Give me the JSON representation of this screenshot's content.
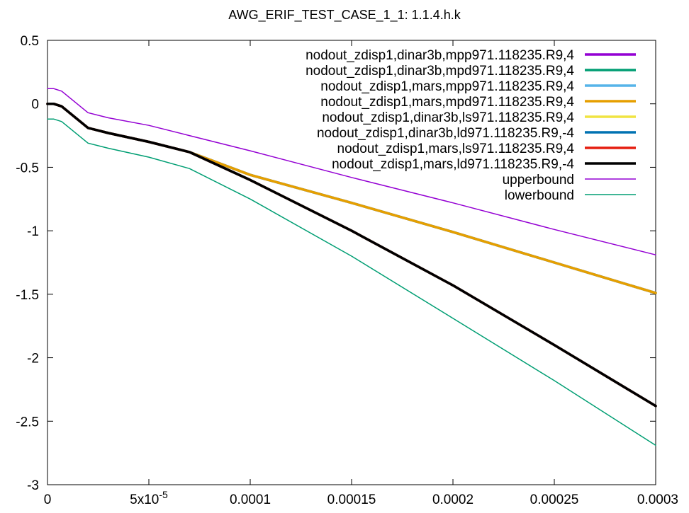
{
  "chart_data": {
    "type": "line",
    "title": "AWG_ERIF_TEST_CASE_1_1: 1.1.4.h.k",
    "xlabel": "",
    "ylabel": "",
    "xlim": [
      0,
      0.0003
    ],
    "ylim": [
      -3,
      0.5
    ],
    "x_ticks": [
      {
        "value": 0,
        "label": "0"
      },
      {
        "value": 5e-05,
        "label": "5x10",
        "exp": "-5"
      },
      {
        "value": 0.0001,
        "label": "0.0001"
      },
      {
        "value": 0.00015,
        "label": "0.00015"
      },
      {
        "value": 0.0002,
        "label": "0.0002"
      },
      {
        "value": 0.00025,
        "label": "0.00025"
      },
      {
        "value": 0.0003,
        "label": "0.0003"
      }
    ],
    "y_ticks": [
      {
        "value": 0.5,
        "label": "0.5"
      },
      {
        "value": 0,
        "label": "0"
      },
      {
        "value": -0.5,
        "label": "-0.5"
      },
      {
        "value": -1,
        "label": "-1"
      },
      {
        "value": -1.5,
        "label": "-1.5"
      },
      {
        "value": -2,
        "label": "-2"
      },
      {
        "value": -2.5,
        "label": "-2.5"
      },
      {
        "value": -3,
        "label": "-3"
      }
    ],
    "grid": false,
    "legend_position": "top-right",
    "series": [
      {
        "name": "nodout_zdisp1,dinar3b,mpp971.118235.R9,4",
        "color": "#9400d3",
        "width": 3.5,
        "x": [
          0,
          3e-06,
          7e-06,
          2e-05,
          3e-05,
          5e-05,
          7e-05,
          0.0001,
          0.00015,
          0.0002,
          0.00025,
          0.0003
        ],
        "y": [
          0,
          0,
          -0.02,
          -0.19,
          -0.23,
          -0.3,
          -0.38,
          -0.56,
          -0.78,
          -1.01,
          -1.25,
          -1.49
        ]
      },
      {
        "name": "nodout_zdisp1,dinar3b,mpd971.118235.R9,4",
        "color": "#009e73",
        "width": 3.5,
        "x": [
          0,
          3e-06,
          7e-06,
          2e-05,
          3e-05,
          5e-05,
          7e-05,
          0.0001,
          0.00015,
          0.0002,
          0.00025,
          0.0003
        ],
        "y": [
          0,
          0,
          -0.02,
          -0.19,
          -0.23,
          -0.3,
          -0.38,
          -0.56,
          -0.78,
          -1.01,
          -1.25,
          -1.49
        ]
      },
      {
        "name": "nodout_zdisp1,mars,mpp971.118235.R9,4",
        "color": "#56b4e9",
        "width": 3.5,
        "x": [
          0,
          3e-06,
          7e-06,
          2e-05,
          3e-05,
          5e-05,
          7e-05,
          0.0001,
          0.00015,
          0.0002,
          0.00025,
          0.0003
        ],
        "y": [
          0,
          0,
          -0.02,
          -0.19,
          -0.23,
          -0.3,
          -0.38,
          -0.56,
          -0.78,
          -1.01,
          -1.25,
          -1.49
        ]
      },
      {
        "name": "nodout_zdisp1,mars,mpd971.118235.R9,4",
        "color": "#e69f00",
        "width": 3.5,
        "x": [
          0,
          3e-06,
          7e-06,
          2e-05,
          3e-05,
          5e-05,
          7e-05,
          0.0001,
          0.00015,
          0.0002,
          0.00025,
          0.0003
        ],
        "y": [
          0,
          0,
          -0.02,
          -0.19,
          -0.23,
          -0.3,
          -0.38,
          -0.56,
          -0.78,
          -1.01,
          -1.25,
          -1.49
        ]
      },
      {
        "name": "nodout_zdisp1,dinar3b,ls971.118235.R9,4",
        "color": "#f0e442",
        "width": 3.5,
        "x": [
          0,
          3e-06,
          7e-06,
          2e-05,
          3e-05,
          5e-05,
          7e-05,
          0.0001,
          0.00015,
          0.0002,
          0.00025,
          0.0003
        ],
        "y": [
          0,
          0,
          -0.02,
          -0.19,
          -0.23,
          -0.3,
          -0.38,
          -0.6,
          -1.0,
          -1.43,
          -1.9,
          -2.38
        ]
      },
      {
        "name": "nodout_zdisp1,dinar3b,ld971.118235.R9,-4",
        "color": "#0072b2",
        "width": 3.5,
        "x": [
          0,
          3e-06,
          7e-06,
          2e-05,
          3e-05,
          5e-05,
          7e-05,
          0.0001,
          0.00015,
          0.0002,
          0.00025,
          0.0003
        ],
        "y": [
          0,
          0,
          -0.02,
          -0.19,
          -0.23,
          -0.3,
          -0.38,
          -0.6,
          -1.0,
          -1.43,
          -1.9,
          -2.38
        ]
      },
      {
        "name": "nodout_zdisp1,mars,ls971.118235.R9,4",
        "color": "#e51e10",
        "width": 3.5,
        "x": [
          0,
          3e-06,
          7e-06,
          2e-05,
          3e-05,
          5e-05,
          7e-05,
          0.0001,
          0.00015,
          0.0002,
          0.00025,
          0.0003
        ],
        "y": [
          0,
          0,
          -0.02,
          -0.19,
          -0.23,
          -0.3,
          -0.38,
          -0.6,
          -1.0,
          -1.43,
          -1.9,
          -2.38
        ]
      },
      {
        "name": "nodout_zdisp1,mars,ld971.118235.R9,-4",
        "color": "#000000",
        "width": 3.5,
        "x": [
          0,
          3e-06,
          7e-06,
          2e-05,
          3e-05,
          5e-05,
          7e-05,
          0.0001,
          0.00015,
          0.0002,
          0.00025,
          0.0003
        ],
        "y": [
          0,
          0,
          -0.02,
          -0.19,
          -0.23,
          -0.3,
          -0.38,
          -0.6,
          -1.0,
          -1.43,
          -1.9,
          -2.38
        ]
      },
      {
        "name": "upperbound",
        "color": "#9400d3",
        "width": 1.5,
        "x": [
          0,
          3e-06,
          7e-06,
          2e-05,
          3e-05,
          5e-05,
          7e-05,
          0.0001,
          0.00015,
          0.0002,
          0.00025,
          0.0003
        ],
        "y": [
          0.12,
          0.12,
          0.1,
          -0.07,
          -0.11,
          -0.17,
          -0.25,
          -0.37,
          -0.58,
          -0.78,
          -0.99,
          -1.19
        ]
      },
      {
        "name": "lowerbound",
        "color": "#009e73",
        "width": 1.5,
        "x": [
          0,
          3e-06,
          7e-06,
          2e-05,
          3e-05,
          5e-05,
          7e-05,
          0.0001,
          0.00015,
          0.0002,
          0.00025,
          0.0003
        ],
        "y": [
          -0.12,
          -0.12,
          -0.14,
          -0.31,
          -0.35,
          -0.42,
          -0.51,
          -0.75,
          -1.2,
          -1.69,
          -2.18,
          -2.69
        ]
      }
    ]
  }
}
